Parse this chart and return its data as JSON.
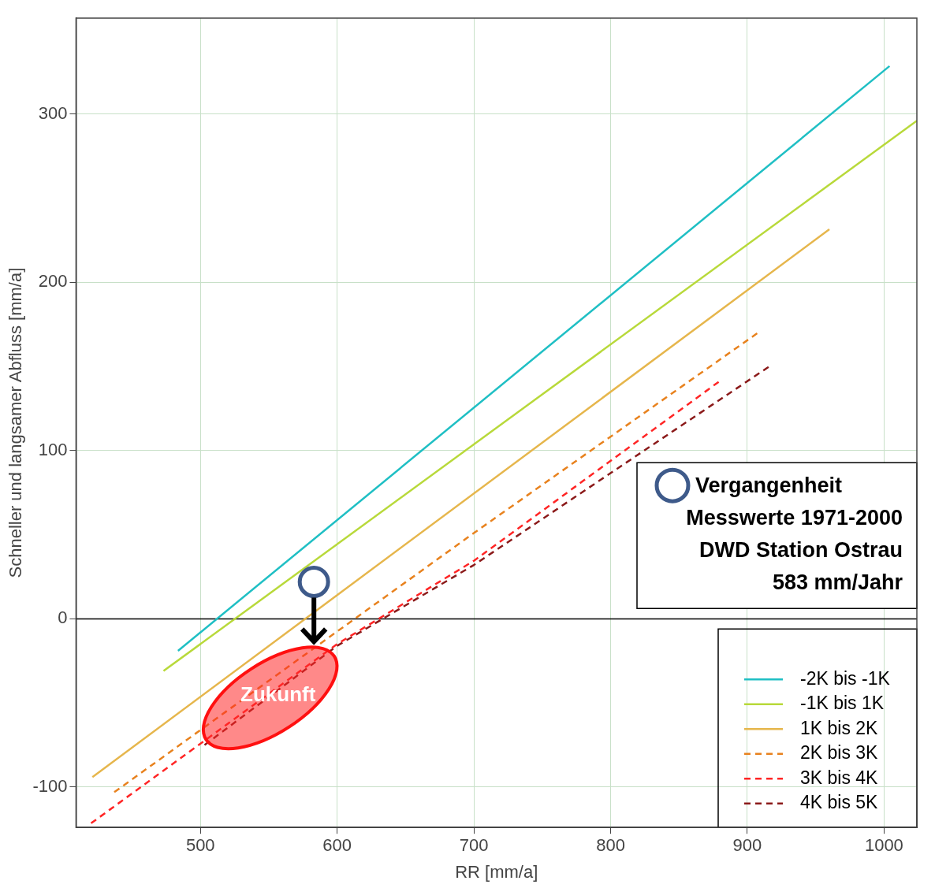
{
  "chart_data": {
    "type": "line",
    "xlabel": "RR [mm/a]",
    "ylabel": "Schneller und langsamer Abfluss [mm/a]",
    "xlim": [
      409,
      1024
    ],
    "ylim": [
      -124,
      357
    ],
    "xticks": [
      500,
      600,
      700,
      800,
      900,
      1000
    ],
    "yticks": [
      -100,
      0,
      100,
      200,
      300
    ],
    "grid": true,
    "legend": "bottom right",
    "ref_lines": [
      {
        "axis": "y",
        "value": 0,
        "color": "#000000",
        "line_style": "solid"
      }
    ],
    "series": [
      {
        "name": "-2K bis -1K",
        "color": "#1fbfc4",
        "line_style": "solid",
        "x": [
          483.6,
          1004
        ],
        "values": [
          -19,
          328.5
        ]
      },
      {
        "name": "-1K bis 1K",
        "color": "#b8d93a",
        "line_style": "solid",
        "x": [
          473,
          1024
        ],
        "values": [
          -31,
          296
        ]
      },
      {
        "name": "1K bis 2K",
        "color": "#e6b64c",
        "line_style": "solid",
        "x": [
          421,
          960
        ],
        "values": [
          -94,
          231.5
        ]
      },
      {
        "name": "2K bis 3K",
        "color": "#e8821e",
        "line_style": "dashed",
        "x": [
          437,
          600,
          700,
          909.5
        ],
        "values": [
          -103,
          -7.5,
          51,
          171
        ]
      },
      {
        "name": "3K bis 4K",
        "color": "#ff2525",
        "line_style": "dashed",
        "x": [
          420,
          600,
          700,
          881
        ],
        "values": [
          -121.5,
          -15,
          34.5,
          142
        ]
      },
      {
        "name": "4K bis 5K",
        "color": "#8b1a1a",
        "line_style": "dashed",
        "x": [
          503,
          600,
          700,
          917
        ],
        "values": [
          -75,
          -16,
          32,
          150.5
        ]
      },
      {
        "name": "Vergangenheit",
        "type": "scatter",
        "marker": "circle",
        "color": "#3e5a8a",
        "x": [
          583
        ],
        "values": [
          22
        ]
      }
    ],
    "annotations": [
      "Messwerte 1971-2000",
      "DWD Station Ostrau",
      "583 mm/Jahr",
      {
        "text": "Zukunft",
        "x": 551,
        "y": -47
      }
    ]
  }
}
